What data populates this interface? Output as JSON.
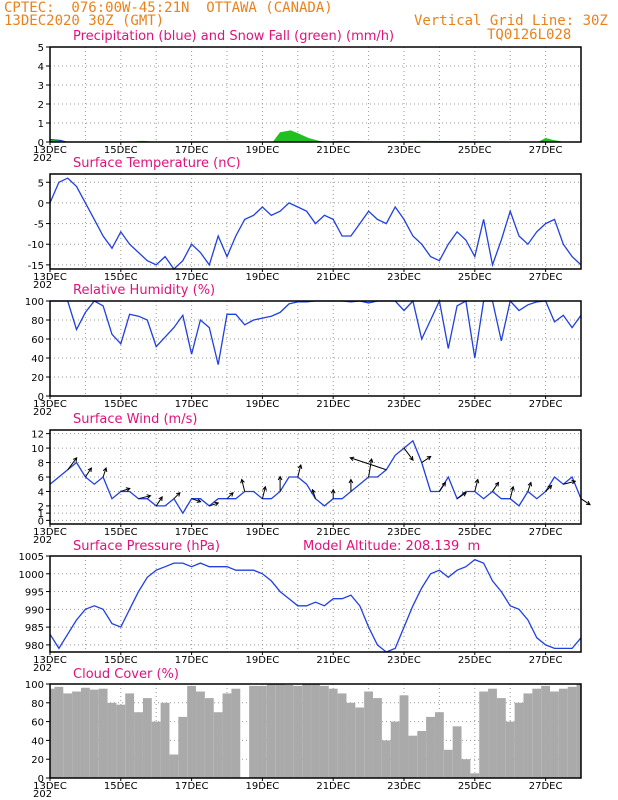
{
  "header": {
    "line1": "CPTEC:  076:00W-45:21N  OTTAWA (CANADA)",
    "line2": "13DEC2020 30Z (GMT)",
    "grid_note": "Vertical Grid Line: 30Z",
    "code": "TQ0126L028"
  },
  "colors": {
    "header": "#e8821e",
    "title": "#e0127a",
    "precip": "#1030e0",
    "snow": "#20c020",
    "line": "#2040e0",
    "cloud": "#aaaaaa",
    "arrow": "#000000"
  },
  "x_axis": {
    "start_day": 13,
    "end_day": 28,
    "tick_labels": [
      "13DEC",
      "15DEC",
      "17DEC",
      "19DEC",
      "21DEC",
      "23DEC",
      "25DEC",
      "27DEC"
    ],
    "year_fragment": "202"
  },
  "chart_data": [
    {
      "type": "area",
      "title": "Precipitation (blue) and Snow Fall (green) (mm/h)",
      "ylim": [
        0,
        5
      ],
      "yticks": [
        0,
        1,
        2,
        3,
        4,
        5
      ],
      "grid": true,
      "series": [
        {
          "name": "Precipitation (blue)",
          "color": "#1030e0",
          "x": [
            13.0,
            13.3,
            13.5
          ],
          "y": [
            0.15,
            0.1,
            0.0
          ]
        },
        {
          "name": "Snow Fall (green)",
          "color": "#20c020",
          "x": [
            13.0,
            13.3,
            13.5,
            15.2,
            15.6,
            16.0,
            19.3,
            19.5,
            19.8,
            20.0,
            20.3,
            20.6,
            20.8,
            21.2,
            22.5,
            23.5,
            26.8,
            27.0,
            27.2,
            27.5
          ],
          "y": [
            0.1,
            0.05,
            0.0,
            0.0,
            0.05,
            0.0,
            0.0,
            0.5,
            0.6,
            0.45,
            0.2,
            0.05,
            0.0,
            0.05,
            0.0,
            0.05,
            0.0,
            0.2,
            0.1,
            0.0
          ]
        }
      ]
    },
    {
      "type": "line",
      "title": "Surface Temperature (nC)",
      "ylim": [
        -16,
        7
      ],
      "yticks": [
        5,
        0,
        -5,
        -10,
        -15
      ],
      "grid": true,
      "x": [
        13.0,
        13.25,
        13.5,
        13.75,
        14.0,
        14.25,
        14.5,
        14.75,
        15.0,
        15.25,
        15.5,
        15.75,
        16.0,
        16.25,
        16.5,
        16.75,
        17.0,
        17.25,
        17.5,
        17.75,
        18.0,
        18.25,
        18.5,
        18.75,
        19.0,
        19.25,
        19.5,
        19.75,
        20.0,
        20.25,
        20.5,
        20.75,
        21.0,
        21.25,
        21.5,
        21.75,
        22.0,
        22.25,
        22.5,
        22.75,
        23.0,
        23.25,
        23.5,
        23.75,
        24.0,
        24.25,
        24.5,
        24.75,
        25.0,
        25.25,
        25.5,
        25.75,
        26.0,
        26.25,
        26.5,
        26.75,
        27.0,
        27.25,
        27.5,
        27.75,
        28.0
      ],
      "y": [
        0,
        5,
        6,
        4,
        0,
        -4,
        -8,
        -11,
        -7,
        -10,
        -12,
        -14,
        -15,
        -13,
        -16,
        -14,
        -10,
        -12,
        -15,
        -8,
        -13,
        -8,
        -4,
        -3,
        -1,
        -3,
        -2,
        0,
        -1,
        -2,
        -5,
        -3,
        -4,
        -8,
        -8,
        -5,
        -2,
        -4,
        -5,
        -1,
        -4,
        -8,
        -10,
        -13,
        -14,
        -10,
        -7,
        -9,
        -13,
        -4,
        -15,
        -9,
        -2,
        -8,
        -10,
        -7,
        -5,
        -4,
        -10,
        -13,
        -15
      ]
    },
    {
      "type": "line",
      "title": "Relative Humidity (%)",
      "ylim": [
        0,
        100
      ],
      "yticks": [
        0,
        20,
        40,
        60,
        80,
        100
      ],
      "grid": true,
      "x": [
        13.0,
        13.25,
        13.5,
        13.75,
        14.0,
        14.25,
        14.5,
        14.75,
        15.0,
        15.25,
        15.5,
        15.75,
        16.0,
        16.25,
        16.5,
        16.75,
        17.0,
        17.25,
        17.5,
        17.75,
        18.0,
        18.25,
        18.5,
        18.75,
        19.0,
        19.25,
        19.5,
        19.75,
        20.0,
        20.25,
        20.5,
        20.75,
        21.0,
        21.25,
        21.5,
        21.75,
        22.0,
        22.25,
        22.5,
        22.75,
        23.0,
        23.25,
        23.5,
        23.75,
        24.0,
        24.25,
        24.5,
        24.75,
        25.0,
        25.25,
        25.5,
        25.75,
        26.0,
        26.25,
        26.5,
        26.75,
        27.0,
        27.25,
        27.5,
        27.75,
        28.0
      ],
      "y": [
        100,
        100,
        100,
        70,
        88,
        100,
        95,
        65,
        55,
        86,
        84,
        80,
        52,
        62,
        72,
        85,
        44,
        80,
        72,
        33,
        86,
        86,
        75,
        80,
        82,
        84,
        88,
        97,
        99,
        99,
        100,
        100,
        100,
        100,
        99,
        100,
        98,
        100,
        100,
        100,
        90,
        100,
        60,
        80,
        100,
        50,
        95,
        100,
        40,
        100,
        100,
        58,
        100,
        90,
        96,
        99,
        100,
        78,
        85,
        72,
        85
      ]
    },
    {
      "type": "line",
      "title": "Surface Wind (m/s)",
      "ylim": [
        -0.5,
        12.5
      ],
      "yticks": [
        0,
        1,
        2,
        4,
        6,
        8,
        10,
        12
      ],
      "grid": true,
      "x": [
        13.0,
        13.25,
        13.5,
        13.75,
        14.0,
        14.25,
        14.5,
        14.75,
        15.0,
        15.25,
        15.5,
        15.75,
        16.0,
        16.25,
        16.5,
        16.75,
        17.0,
        17.25,
        17.5,
        17.75,
        18.0,
        18.25,
        18.5,
        18.75,
        19.0,
        19.25,
        19.5,
        19.75,
        20.0,
        20.25,
        20.5,
        20.75,
        21.0,
        21.25,
        21.5,
        21.75,
        22.0,
        22.25,
        22.5,
        22.75,
        23.0,
        23.25,
        23.5,
        23.75,
        24.0,
        24.25,
        24.5,
        24.75,
        25.0,
        25.25,
        25.5,
        25.75,
        26.0,
        26.25,
        26.5,
        26.75,
        27.0,
        27.25,
        27.5,
        27.75,
        28.0
      ],
      "y": [
        5,
        6,
        7,
        8,
        6,
        5,
        6,
        3,
        4,
        4,
        3,
        3,
        2,
        2,
        3,
        1,
        3,
        3,
        2,
        3,
        3,
        3,
        4,
        4,
        3,
        3,
        4,
        6,
        6,
        5,
        3,
        2,
        3,
        3,
        4,
        5,
        6,
        6,
        7,
        9,
        10,
        11,
        8,
        4,
        4,
        6,
        3,
        4,
        4,
        3,
        4,
        3,
        3,
        2,
        4,
        3,
        4,
        6,
        5,
        6,
        3
      ],
      "arrows": [
        {
          "x": 13.5,
          "u": 1.5,
          "v": 2.0
        },
        {
          "x": 14.0,
          "u": 1.0,
          "v": 1.5
        },
        {
          "x": 14.5,
          "u": 0.5,
          "v": 1.5
        },
        {
          "x": 15.0,
          "u": 1.5,
          "v": 0.5
        },
        {
          "x": 15.5,
          "u": 2.0,
          "v": 0.5
        },
        {
          "x": 16.0,
          "u": 1.0,
          "v": 1.5
        },
        {
          "x": 16.5,
          "u": 1.0,
          "v": 1.0
        },
        {
          "x": 17.0,
          "u": 1.5,
          "v": -0.5
        },
        {
          "x": 17.5,
          "u": 1.5,
          "v": 0.5
        },
        {
          "x": 18.0,
          "u": 1.0,
          "v": 1.0
        },
        {
          "x": 18.5,
          "u": -0.5,
          "v": 2.0
        },
        {
          "x": 19.0,
          "u": 0.5,
          "v": 2.0
        },
        {
          "x": 19.5,
          "u": 0.0,
          "v": 2.5
        },
        {
          "x": 20.0,
          "u": 0.5,
          "v": 2.0
        },
        {
          "x": 20.5,
          "u": -0.5,
          "v": 1.5
        },
        {
          "x": 21.0,
          "u": 0.0,
          "v": 1.5
        },
        {
          "x": 21.5,
          "u": 0.0,
          "v": 2.0
        },
        {
          "x": 22.0,
          "u": 0.5,
          "v": 3.0
        },
        {
          "x": 22.5,
          "u": -6.0,
          "v": 2.0
        },
        {
          "x": 23.0,
          "u": 1.5,
          "v": -2.0
        },
        {
          "x": 23.5,
          "u": 1.5,
          "v": 1.0
        },
        {
          "x": 24.0,
          "u": 1.0,
          "v": 1.5
        },
        {
          "x": 24.5,
          "u": 1.5,
          "v": 1.0
        },
        {
          "x": 25.0,
          "u": 0.5,
          "v": 2.0
        },
        {
          "x": 25.5,
          "u": 1.0,
          "v": 1.5
        },
        {
          "x": 26.0,
          "u": 0.5,
          "v": 2.0
        },
        {
          "x": 26.5,
          "u": 0.5,
          "v": 1.5
        },
        {
          "x": 27.0,
          "u": 1.0,
          "v": 1.0
        },
        {
          "x": 27.5,
          "u": 2.0,
          "v": 0.5
        },
        {
          "x": 28.0,
          "u": 1.5,
          "v": -1.0
        }
      ]
    },
    {
      "type": "line",
      "title": "Surface Pressure (hPa)",
      "annotation": "Model Altitude: 208.139  m",
      "ylim": [
        978,
        1005
      ],
      "yticks": [
        980,
        985,
        990,
        995,
        1000,
        1005
      ],
      "grid": true,
      "x": [
        13.0,
        13.25,
        13.5,
        13.75,
        14.0,
        14.25,
        14.5,
        14.75,
        15.0,
        15.25,
        15.5,
        15.75,
        16.0,
        16.25,
        16.5,
        16.75,
        17.0,
        17.25,
        17.5,
        17.75,
        18.0,
        18.25,
        18.5,
        18.75,
        19.0,
        19.25,
        19.5,
        19.75,
        20.0,
        20.25,
        20.5,
        20.75,
        21.0,
        21.25,
        21.5,
        21.75,
        22.0,
        22.25,
        22.5,
        22.75,
        23.0,
        23.25,
        23.5,
        23.75,
        24.0,
        24.25,
        24.5,
        24.75,
        25.0,
        25.25,
        25.5,
        25.75,
        26.0,
        26.25,
        26.5,
        26.75,
        27.0,
        27.25,
        27.5,
        27.75,
        28.0
      ],
      "y": [
        983,
        979,
        983,
        987,
        990,
        991,
        990,
        986,
        985,
        990,
        995,
        999,
        1001,
        1002,
        1003,
        1003,
        1002,
        1003,
        1002,
        1002,
        1002,
        1001,
        1001,
        1001,
        1000,
        998,
        995,
        993,
        991,
        991,
        992,
        991,
        993,
        993,
        994,
        991,
        985,
        980,
        978,
        979,
        985,
        991,
        996,
        1000,
        1001,
        999,
        1001,
        1002,
        1004,
        1003,
        998,
        995,
        991,
        990,
        987,
        982,
        980,
        979,
        979,
        979,
        982
      ]
    },
    {
      "type": "bar",
      "title": "Cloud Cover (%)",
      "ylim": [
        0,
        100
      ],
      "yticks": [
        0,
        20,
        40,
        60,
        80,
        100
      ],
      "grid": true,
      "x": [
        13.0,
        13.25,
        13.5,
        13.75,
        14.0,
        14.25,
        14.5,
        14.75,
        15.0,
        15.25,
        15.5,
        15.75,
        16.0,
        16.25,
        16.5,
        16.75,
        17.0,
        17.25,
        17.5,
        17.75,
        18.0,
        18.25,
        18.5,
        18.75,
        19.0,
        19.25,
        19.5,
        19.75,
        20.0,
        20.25,
        20.5,
        20.75,
        21.0,
        21.25,
        21.5,
        21.75,
        22.0,
        22.25,
        22.5,
        22.75,
        23.0,
        23.25,
        23.5,
        23.75,
        24.0,
        24.25,
        24.5,
        24.75,
        25.0,
        25.25,
        25.5,
        25.75,
        26.0,
        26.25,
        26.5,
        26.75,
        27.0,
        27.25,
        27.5,
        27.75,
        28.0
      ],
      "values": [
        95,
        97,
        90,
        92,
        96,
        94,
        95,
        80,
        78,
        90,
        70,
        85,
        60,
        80,
        25,
        65,
        98,
        92,
        85,
        70,
        90,
        95,
        0,
        98,
        98,
        100,
        100,
        99,
        98,
        100,
        100,
        98,
        95,
        90,
        80,
        75,
        92,
        85,
        40,
        60,
        88,
        45,
        50,
        65,
        70,
        30,
        55,
        20,
        5,
        92,
        95,
        85,
        60,
        80,
        90,
        95,
        98,
        92,
        95,
        97,
        100
      ]
    }
  ]
}
